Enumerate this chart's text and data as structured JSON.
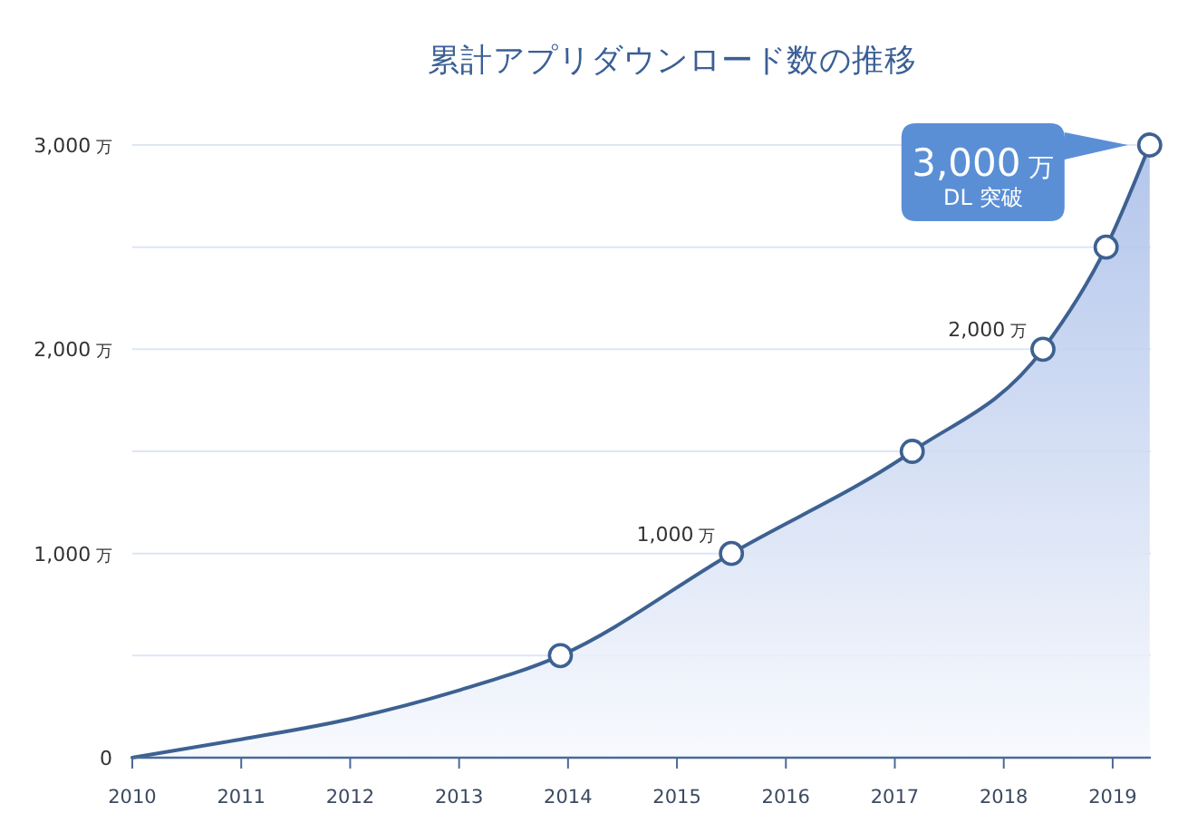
{
  "chart_data": {
    "type": "area",
    "title": "累計アプリダウンロード数の推移",
    "xlim": [
      2010,
      2019.35
    ],
    "xticks": [
      2010,
      2011,
      2012,
      2013,
      2014,
      2015,
      2016,
      2017,
      2018,
      2019
    ],
    "ylim": [
      0,
      3000
    ],
    "yticks": [
      0,
      {
        "value": 500,
        "label": null
      },
      {
        "value": 1000,
        "label": "1,000 万"
      },
      {
        "value": 1500,
        "label": null
      },
      {
        "value": 2000,
        "label": "2,000 万"
      },
      {
        "value": 2500,
        "label": null
      },
      {
        "value": 3000,
        "label": "3,000 万"
      }
    ],
    "grid": "y",
    "series": [
      {
        "color": "#3d6191",
        "x": [
          2010,
          2011,
          2012,
          2013,
          2013.93,
          2015.5,
          2017.16,
          2018.36,
          2018.94,
          2019.34
        ],
        "values": [
          0,
          90,
          190,
          330,
          500,
          1000,
          1500,
          2000,
          2500,
          3000
        ]
      },
      {
        "type": "scatter",
        "color": "#3d6191",
        "marker": "circle",
        "x": [
          2013.93,
          2015.5,
          2017.16,
          2018.36,
          2018.94,
          2019.34
        ],
        "values": [
          500,
          1000,
          1500,
          2000,
          2500,
          3000
        ],
        "value_labels": [
          null,
          "1,000 万",
          null,
          "2,000 万",
          null,
          null
        ]
      }
    ],
    "annotations": [
      {
        "text": "3,000 万\nDL 突破",
        "x": 2019.34,
        "y": 3000
      }
    ]
  }
}
